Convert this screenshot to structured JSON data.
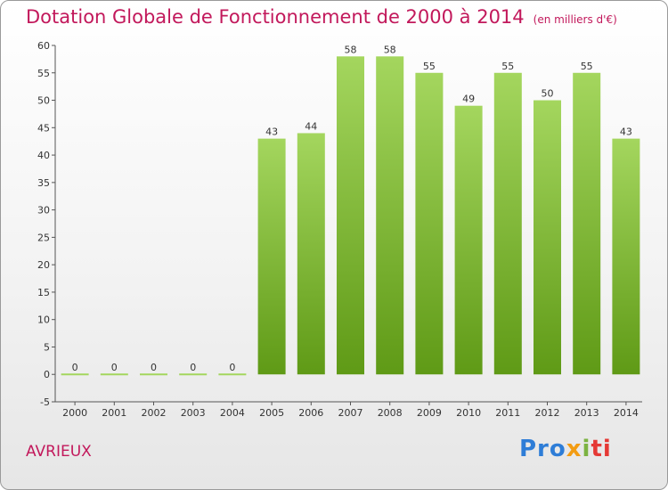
{
  "title": "Dotation Globale de Fonctionnement de 2000 à 2014",
  "subtitle": "(en milliers d'€)",
  "commune": "AVRIEUX",
  "logo": {
    "p1": "Pro",
    "p2": "x",
    "p3": "i",
    "p4": "ti"
  },
  "colors": {
    "bar_top": "#a4d65e",
    "bar_bottom": "#5f9a16",
    "title": "#c2185b"
  },
  "chart_data": {
    "type": "bar",
    "title": "Dotation Globale de Fonctionnement de 2000 à 2014",
    "subtitle": "(en milliers d'€)",
    "categories": [
      "2000",
      "2001",
      "2002",
      "2003",
      "2004",
      "2005",
      "2006",
      "2007",
      "2008",
      "2009",
      "2010",
      "2011",
      "2012",
      "2013",
      "2014"
    ],
    "values": [
      0,
      0,
      0,
      0,
      0,
      43,
      44,
      58,
      58,
      55,
      49,
      55,
      50,
      55,
      43
    ],
    "ylim": [
      -5,
      60
    ],
    "yticks": [
      -5,
      0,
      5,
      10,
      15,
      20,
      25,
      30,
      35,
      40,
      45,
      50,
      55,
      60
    ],
    "grid": false,
    "legend": "none"
  }
}
